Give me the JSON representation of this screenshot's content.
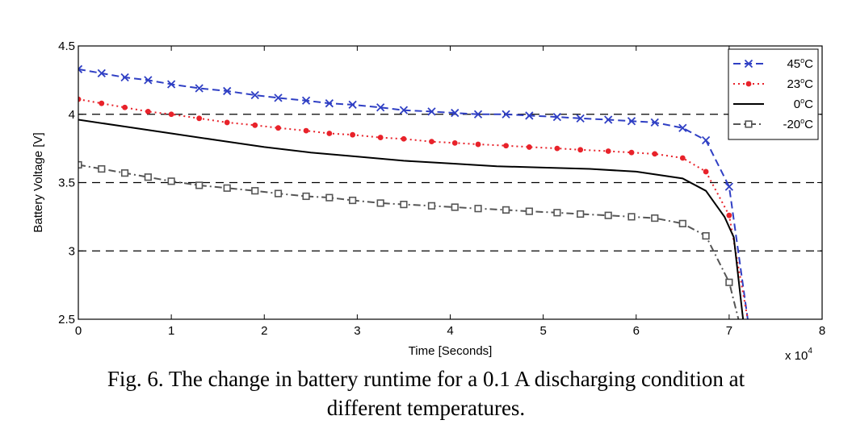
{
  "chart_data": {
    "type": "line",
    "xlabel": "Time [Seconds]",
    "ylabel": "Battery Voltage [V]",
    "x_multiplier": "x 10",
    "x_multiplier_exp": "4",
    "xlim": [
      0,
      80000
    ],
    "ylim": [
      2.5,
      4.5
    ],
    "x_ticks": [
      0,
      10000,
      20000,
      30000,
      40000,
      50000,
      60000,
      70000,
      80000
    ],
    "x_tick_labels": [
      "0",
      "1",
      "2",
      "3",
      "4",
      "5",
      "6",
      "7",
      "8"
    ],
    "y_ticks": [
      2.5,
      3,
      3.5,
      4,
      4.5
    ],
    "y_tick_labels": [
      "2.5",
      "3",
      "3.5",
      "4",
      "4.5"
    ],
    "grid": "dashed horizontal at 3, 3.5, 4",
    "legend_position": "top-right",
    "series": [
      {
        "name": "45°C",
        "name_base": "45",
        "name_sup": "o",
        "name_unit": "C",
        "color": "#2f3fc4",
        "dash": "dashed",
        "marker": "x",
        "points": [
          [
            0,
            4.33
          ],
          [
            2500,
            4.3
          ],
          [
            5000,
            4.27
          ],
          [
            7500,
            4.25
          ],
          [
            10000,
            4.22
          ],
          [
            13000,
            4.19
          ],
          [
            16000,
            4.17
          ],
          [
            19000,
            4.14
          ],
          [
            21500,
            4.12
          ],
          [
            24500,
            4.1
          ],
          [
            27000,
            4.08
          ],
          [
            29500,
            4.07
          ],
          [
            32500,
            4.05
          ],
          [
            35000,
            4.03
          ],
          [
            38000,
            4.02
          ],
          [
            40500,
            4.01
          ],
          [
            43000,
            4.0
          ],
          [
            46000,
            4.0
          ],
          [
            48500,
            3.99
          ],
          [
            51500,
            3.98
          ],
          [
            54000,
            3.97
          ],
          [
            57000,
            3.96
          ],
          [
            59500,
            3.95
          ],
          [
            62000,
            3.94
          ],
          [
            65000,
            3.9
          ],
          [
            67500,
            3.81
          ],
          [
            70000,
            3.47
          ],
          [
            72000,
            2.5
          ]
        ],
        "marker_points": [
          [
            0,
            4.33
          ],
          [
            2500,
            4.3
          ],
          [
            5000,
            4.27
          ],
          [
            7500,
            4.25
          ],
          [
            10000,
            4.22
          ],
          [
            13000,
            4.19
          ],
          [
            16000,
            4.17
          ],
          [
            19000,
            4.14
          ],
          [
            21500,
            4.12
          ],
          [
            24500,
            4.1
          ],
          [
            27000,
            4.08
          ],
          [
            29500,
            4.07
          ],
          [
            32500,
            4.05
          ],
          [
            35000,
            4.03
          ],
          [
            38000,
            4.02
          ],
          [
            40500,
            4.01
          ],
          [
            43000,
            4.0
          ],
          [
            46000,
            4.0
          ],
          [
            48500,
            3.99
          ],
          [
            51500,
            3.98
          ],
          [
            54000,
            3.97
          ],
          [
            57000,
            3.96
          ],
          [
            59500,
            3.95
          ],
          [
            62000,
            3.94
          ],
          [
            65000,
            3.9
          ],
          [
            67500,
            3.81
          ],
          [
            70000,
            3.47
          ]
        ]
      },
      {
        "name": "23°C",
        "name_base": "23",
        "name_sup": "o",
        "name_unit": "C",
        "color": "#e8222a",
        "dash": "dotted",
        "marker": "dot",
        "points": [
          [
            0,
            4.11
          ],
          [
            2500,
            4.08
          ],
          [
            5000,
            4.05
          ],
          [
            7500,
            4.02
          ],
          [
            10000,
            4.0
          ],
          [
            13000,
            3.97
          ],
          [
            16000,
            3.94
          ],
          [
            19000,
            3.92
          ],
          [
            21500,
            3.9
          ],
          [
            24500,
            3.88
          ],
          [
            27000,
            3.86
          ],
          [
            29500,
            3.85
          ],
          [
            32500,
            3.83
          ],
          [
            35000,
            3.82
          ],
          [
            38000,
            3.8
          ],
          [
            40500,
            3.79
          ],
          [
            43000,
            3.78
          ],
          [
            46000,
            3.77
          ],
          [
            48500,
            3.76
          ],
          [
            51500,
            3.75
          ],
          [
            54000,
            3.74
          ],
          [
            57000,
            3.73
          ],
          [
            59500,
            3.72
          ],
          [
            62000,
            3.71
          ],
          [
            65000,
            3.68
          ],
          [
            67500,
            3.58
          ],
          [
            70000,
            3.26
          ],
          [
            72000,
            2.5
          ]
        ],
        "marker_points": [
          [
            0,
            4.11
          ],
          [
            2500,
            4.08
          ],
          [
            5000,
            4.05
          ],
          [
            7500,
            4.02
          ],
          [
            10000,
            4.0
          ],
          [
            13000,
            3.97
          ],
          [
            16000,
            3.94
          ],
          [
            19000,
            3.92
          ],
          [
            21500,
            3.9
          ],
          [
            24500,
            3.88
          ],
          [
            27000,
            3.86
          ],
          [
            29500,
            3.85
          ],
          [
            32500,
            3.83
          ],
          [
            35000,
            3.82
          ],
          [
            38000,
            3.8
          ],
          [
            40500,
            3.79
          ],
          [
            43000,
            3.78
          ],
          [
            46000,
            3.77
          ],
          [
            48500,
            3.76
          ],
          [
            51500,
            3.75
          ],
          [
            54000,
            3.74
          ],
          [
            57000,
            3.73
          ],
          [
            59500,
            3.72
          ],
          [
            62000,
            3.71
          ],
          [
            65000,
            3.68
          ],
          [
            67500,
            3.58
          ],
          [
            70000,
            3.26
          ]
        ]
      },
      {
        "name": "0°C",
        "name_base": "0",
        "name_sup": "o",
        "name_unit": "C",
        "color": "#000000",
        "dash": "solid",
        "marker": "none",
        "points": [
          [
            0,
            3.96
          ],
          [
            5000,
            3.91
          ],
          [
            10000,
            3.86
          ],
          [
            15000,
            3.81
          ],
          [
            20000,
            3.76
          ],
          [
            25000,
            3.72
          ],
          [
            30000,
            3.69
          ],
          [
            35000,
            3.66
          ],
          [
            40000,
            3.64
          ],
          [
            45000,
            3.62
          ],
          [
            50000,
            3.61
          ],
          [
            55000,
            3.6
          ],
          [
            60000,
            3.58
          ],
          [
            65000,
            3.53
          ],
          [
            67500,
            3.44
          ],
          [
            69500,
            3.25
          ],
          [
            70500,
            3.1
          ],
          [
            71500,
            2.5
          ]
        ],
        "marker_points": []
      },
      {
        "name": "-20°C",
        "name_base": "-20",
        "name_sup": "o",
        "name_unit": "C",
        "color": "#555555",
        "dash": "dashdot",
        "marker": "square",
        "points": [
          [
            0,
            3.63
          ],
          [
            2500,
            3.6
          ],
          [
            5000,
            3.57
          ],
          [
            7500,
            3.54
          ],
          [
            10000,
            3.51
          ],
          [
            13000,
            3.48
          ],
          [
            16000,
            3.46
          ],
          [
            19000,
            3.44
          ],
          [
            21500,
            3.42
          ],
          [
            24500,
            3.4
          ],
          [
            27000,
            3.39
          ],
          [
            29500,
            3.37
          ],
          [
            32500,
            3.35
          ],
          [
            35000,
            3.34
          ],
          [
            38000,
            3.33
          ],
          [
            40500,
            3.32
          ],
          [
            43000,
            3.31
          ],
          [
            46000,
            3.3
          ],
          [
            48500,
            3.29
          ],
          [
            51500,
            3.28
          ],
          [
            54000,
            3.27
          ],
          [
            57000,
            3.26
          ],
          [
            59500,
            3.25
          ],
          [
            62000,
            3.24
          ],
          [
            65000,
            3.2
          ],
          [
            67500,
            3.11
          ],
          [
            70000,
            2.77
          ],
          [
            71000,
            2.5
          ]
        ],
        "marker_points": [
          [
            0,
            3.63
          ],
          [
            2500,
            3.6
          ],
          [
            5000,
            3.57
          ],
          [
            7500,
            3.54
          ],
          [
            10000,
            3.51
          ],
          [
            13000,
            3.48
          ],
          [
            16000,
            3.46
          ],
          [
            19000,
            3.44
          ],
          [
            21500,
            3.42
          ],
          [
            24500,
            3.4
          ],
          [
            27000,
            3.39
          ],
          [
            29500,
            3.37
          ],
          [
            32500,
            3.35
          ],
          [
            35000,
            3.34
          ],
          [
            38000,
            3.33
          ],
          [
            40500,
            3.32
          ],
          [
            43000,
            3.31
          ],
          [
            46000,
            3.3
          ],
          [
            48500,
            3.29
          ],
          [
            51500,
            3.28
          ],
          [
            54000,
            3.27
          ],
          [
            57000,
            3.26
          ],
          [
            59500,
            3.25
          ],
          [
            62000,
            3.24
          ],
          [
            65000,
            3.2
          ],
          [
            67500,
            3.11
          ],
          [
            70000,
            2.77
          ]
        ]
      }
    ]
  },
  "caption": {
    "line1": "Fig. 6. The change in battery runtime for a 0.1 A discharging condition at",
    "line2": "different temperatures."
  }
}
